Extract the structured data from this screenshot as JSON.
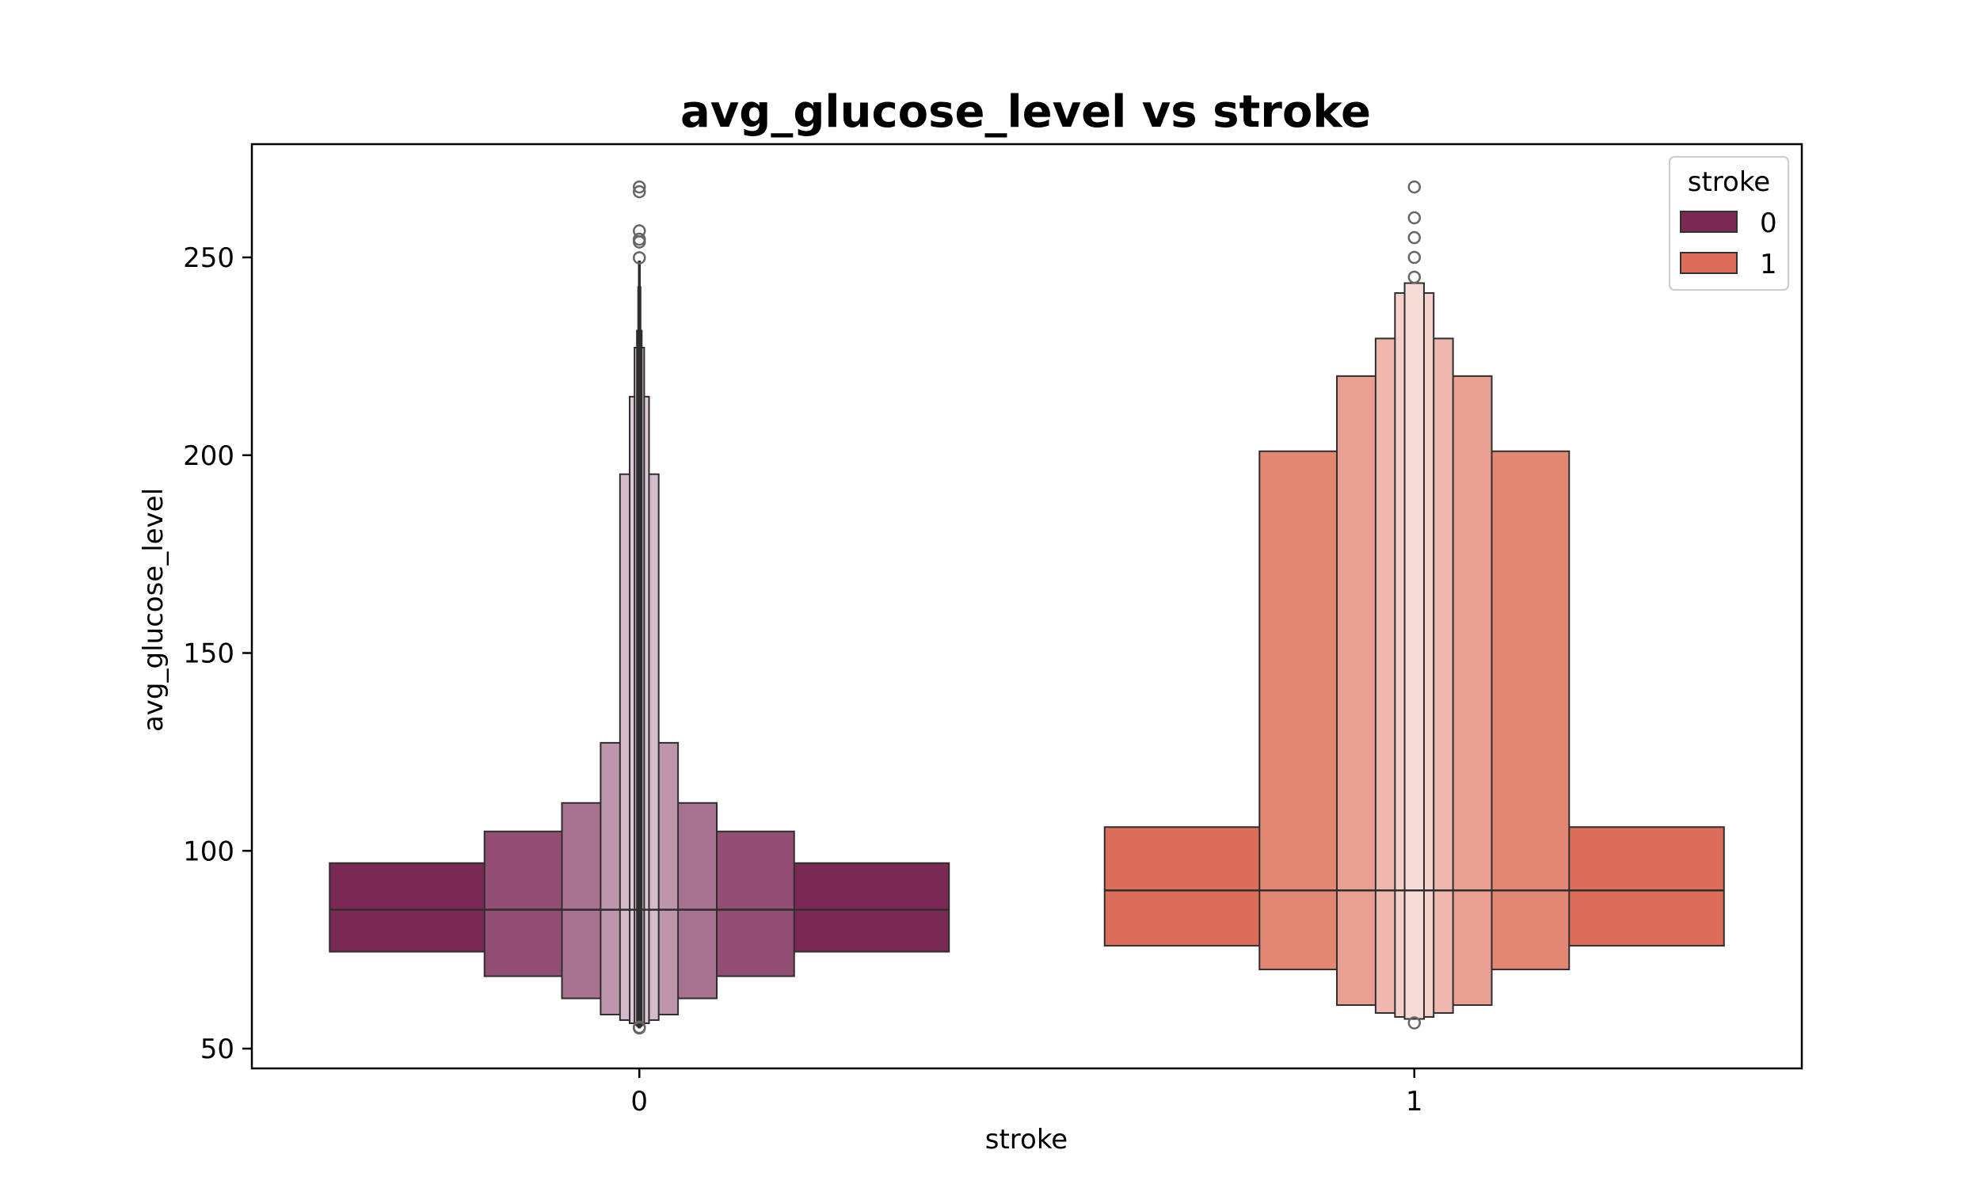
{
  "chart_data": {
    "type": "boxen",
    "title": "avg_glucose_level vs stroke",
    "xlabel": "stroke",
    "ylabel": "avg_glucose_level",
    "categories": [
      "0",
      "1"
    ],
    "ylim": [
      45,
      278
    ],
    "yticks": [
      50,
      100,
      150,
      200,
      250
    ],
    "grid": false,
    "legend": {
      "title": "stroke",
      "placement": "top-right",
      "entries": [
        {
          "label": "0",
          "color": "#7a2955"
        },
        {
          "label": "1",
          "color": "#dd6e59"
        }
      ]
    },
    "series": [
      {
        "category": "0",
        "color": "#7a2955",
        "median": 85.1,
        "boxes": [
          {
            "low": 74.5,
            "high": 96.9
          },
          {
            "low": 68.3,
            "high": 104.9
          },
          {
            "low": 62.7,
            "high": 112.1
          },
          {
            "low": 58.6,
            "high": 127.3
          },
          {
            "low": 57.2,
            "high": 195.2
          },
          {
            "low": 56.4,
            "high": 214.8
          },
          {
            "low": 56.0,
            "high": 227.2
          },
          {
            "low": 55.7,
            "high": 231.5
          },
          {
            "low": 55.5,
            "high": 242.5
          },
          {
            "low": 55.3,
            "high": 249.0
          }
        ],
        "outliers": [
          267.8,
          266.6,
          256.7,
          254.6,
          253.9,
          249.9,
          55.2,
          55.4
        ]
      },
      {
        "category": "1",
        "color": "#dd6e59",
        "median": 90.0,
        "boxes": [
          {
            "low": 76.0,
            "high": 106.0
          },
          {
            "low": 70.0,
            "high": 201.0
          },
          {
            "low": 61.0,
            "high": 220.0
          },
          {
            "low": 59.0,
            "high": 229.5
          },
          {
            "low": 58.0,
            "high": 241.0
          },
          {
            "low": 57.5,
            "high": 243.5
          }
        ],
        "outliers": [
          267.8,
          260.0,
          255.0,
          250.0,
          245.0,
          56.5
        ]
      }
    ]
  }
}
